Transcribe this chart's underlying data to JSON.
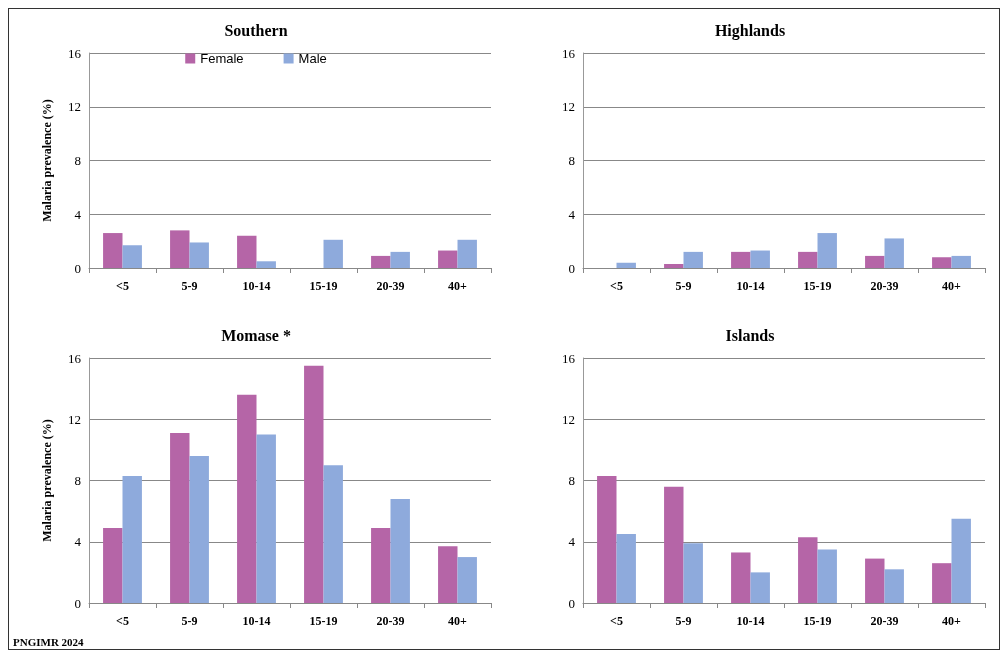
{
  "chart_data": [
    {
      "type": "bar",
      "title": "Southern",
      "ylabel": "Malaria prevalence (%)",
      "categories": [
        "<5",
        "5-9",
        "10-14",
        "15-19",
        "20-39",
        "40+"
      ],
      "series": [
        {
          "name": "Female",
          "color": "#b565a7",
          "values": [
            2.6,
            2.8,
            2.4,
            0,
            0.9,
            1.3
          ]
        },
        {
          "name": "Male",
          "color": "#8eaadc",
          "values": [
            1.7,
            1.9,
            0.5,
            2.1,
            1.2,
            2.1
          ]
        }
      ],
      "ylim": [
        0,
        16
      ],
      "yticks": [
        0,
        4,
        8,
        12,
        16
      ],
      "grid": "y",
      "legend": "top"
    },
    {
      "type": "bar",
      "title": "Highlands",
      "categories": [
        "<5",
        "5-9",
        "10-14",
        "15-19",
        "20-39",
        "40+"
      ],
      "series": [
        {
          "color": "#b565a7",
          "values": [
            0,
            0.3,
            1.2,
            1.2,
            0.9,
            0.8
          ]
        },
        {
          "color": "#8eaadc",
          "values": [
            0.4,
            1.2,
            1.3,
            2.6,
            2.2,
            0.9
          ]
        }
      ],
      "ylim": [
        0,
        16
      ],
      "yticks": [
        0,
        4,
        8,
        12,
        16
      ],
      "grid": "y",
      "legend": false
    },
    {
      "type": "bar",
      "title": "Momase *",
      "ylabel": "Malaria prevalence (%)",
      "categories": [
        "<5",
        "5-9",
        "10-14",
        "15-19",
        "20-39",
        "40+"
      ],
      "series": [
        {
          "color": "#b565a7",
          "values": [
            4.9,
            11.1,
            13.6,
            15.5,
            4.9,
            3.7
          ]
        },
        {
          "color": "#8eaadc",
          "values": [
            8.3,
            9.6,
            11.0,
            9.0,
            6.8,
            3.0
          ]
        }
      ],
      "ylim": [
        0,
        16
      ],
      "yticks": [
        0,
        4,
        8,
        12,
        16
      ],
      "grid": "y",
      "legend": false,
      "annotations": [
        "PNGIMR 2024"
      ]
    },
    {
      "type": "bar",
      "title": "Islands",
      "categories": [
        "<5",
        "5-9",
        "10-14",
        "15-19",
        "20-39",
        "40+"
      ],
      "series": [
        {
          "color": "#b565a7",
          "values": [
            8.3,
            7.6,
            3.3,
            4.3,
            2.9,
            2.6
          ]
        },
        {
          "color": "#8eaadc",
          "values": [
            4.5,
            3.9,
            2.0,
            3.5,
            2.2,
            5.5
          ]
        }
      ],
      "ylim": [
        0,
        16
      ],
      "yticks": [
        0,
        4,
        8,
        12,
        16
      ],
      "grid": "y",
      "legend": false
    }
  ]
}
